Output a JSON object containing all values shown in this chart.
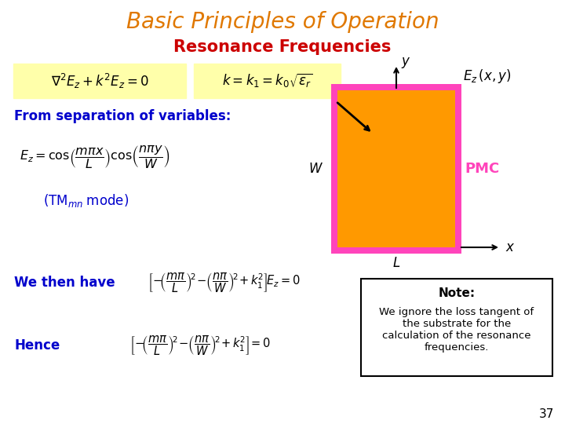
{
  "title": "Basic Principles of Operation",
  "subtitle": "Resonance Frequencies",
  "title_color": "#E07800",
  "subtitle_color": "#CC0000",
  "bg_color": "#FFFFFF",
  "eq1_text": "$\\nabla^2 E_z + k^2 E_z = 0$",
  "eq2_text": "$k = k_1 = k_0\\sqrt{\\varepsilon_r}$",
  "eq1_bg": "#FFFFAA",
  "eq2_bg": "#FFFFAA",
  "from_sep_text": "From separation of variables:",
  "sep_eq_text": "$E_z = \\cos\\!\\left(\\dfrac{m\\pi x}{L}\\right)\\cos\\!\\left(\\dfrac{n\\pi y}{W}\\right)$",
  "tm_mode_text": "$(\\mathrm{TM}_{mn}\\;\\mathrm{mode})$",
  "we_then_text": "We then have",
  "we_then_eq": "$\\left[-\\!\\left(\\dfrac{m\\pi}{L}\\right)^{\\!2}\\!-\\!\\left(\\dfrac{n\\pi}{W}\\right)^{\\!2}\\!+k_1^2\\right]\\!E_z=0$",
  "hence_text": "Hence",
  "hence_eq": "$\\left[-\\!\\left(\\dfrac{m\\pi}{L}\\right)^{\\!2}\\!-\\!\\left(\\dfrac{n\\pi}{W}\\right)^{\\!2}\\!+k_1^2\\right]\\!=0$",
  "note_title": "Note:",
  "note_body": "We ignore the loss tangent of\nthe substrate for the\ncalculation of the resonance\nfrequencies.",
  "blue_color": "#0000CC",
  "rect_fill": "#FF9900",
  "rect_edge": "#FF44BB",
  "pmc_color": "#FF44BB",
  "page_num": "37",
  "title_fontsize": 20,
  "subtitle_fontsize": 15
}
